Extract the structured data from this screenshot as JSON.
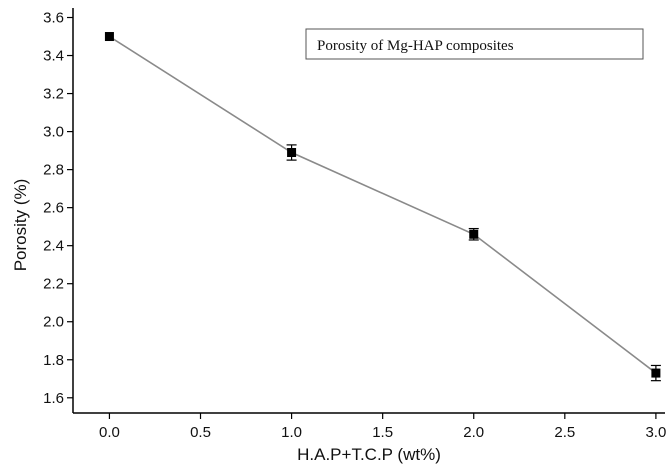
{
  "chart_data": {
    "type": "line",
    "xlabel": "H.A.P+T.C.P (wt%)",
    "ylabel": "Porosity (%)",
    "xlim": [
      -0.2,
      3.05
    ],
    "ylim": [
      1.52,
      3.65
    ],
    "x_ticks": [
      "0.0",
      "0.5",
      "1.0",
      "1.5",
      "2.0",
      "2.5",
      "3.0"
    ],
    "y_ticks": [
      "1.6",
      "1.8",
      "2.0",
      "2.2",
      "2.4",
      "2.6",
      "2.8",
      "3.0",
      "3.2",
      "3.4",
      "3.6"
    ],
    "legend_placement": "top-right",
    "grid": false,
    "series": [
      {
        "name": "Porosity of Mg-HAP composites",
        "x": [
          0.0,
          1.0,
          2.0,
          3.0
        ],
        "y": [
          3.5,
          2.89,
          2.46,
          1.73
        ],
        "error": [
          0.0,
          0.04,
          0.03,
          0.04
        ]
      }
    ],
    "colors": {
      "line": "#8a8a8a",
      "marker": "#000000",
      "axis": "#000000"
    }
  }
}
